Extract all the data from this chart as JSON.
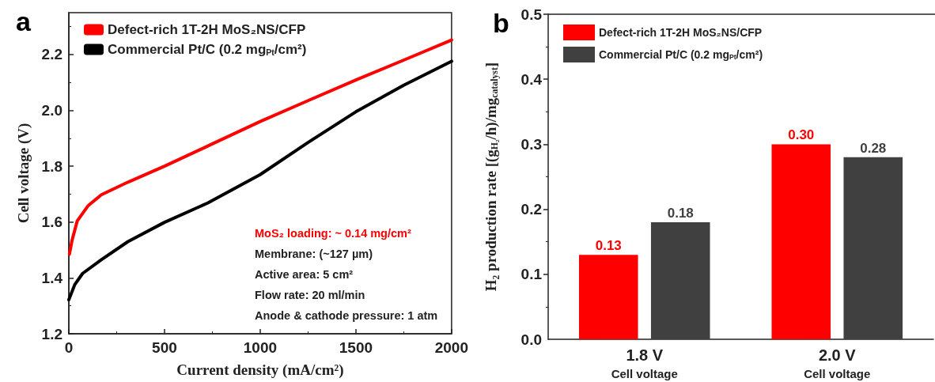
{
  "chart_data": [
    {
      "type": "line",
      "title": "a",
      "xlabel": "Current density (mA/cm²)",
      "ylabel": "Cell voltage (V)",
      "xlim": [
        0,
        2000
      ],
      "xticks": [
        0,
        500,
        1000,
        1500,
        2000
      ],
      "ylim": [
        1.2,
        2.35
      ],
      "yticks": [
        1.2,
        1.4,
        1.6,
        1.8,
        {
          "value": 2,
          "label": "2.0"
        },
        2.2
      ],
      "legend": "top left",
      "grid": false,
      "marker": "none",
      "line_style": "solid",
      "series": [
        {
          "name": "Defect-rich 1T-2H MoS₂NS/CFP",
          "color": "#ff0000",
          "x": [
            3,
            17,
            44,
            100,
            170,
            309,
            500,
            750,
            1000,
            1250,
            1500,
            1750,
            2000
          ],
          "values": [
            1.485,
            1.535,
            1.604,
            1.658,
            1.698,
            1.743,
            1.8,
            1.88,
            1.96,
            2.035,
            2.109,
            2.18,
            2.252
          ]
        },
        {
          "name": "Commercial Pt/C (0.2 mg$_{Pt}$/cm²)",
          "color": "#000000",
          "x": [
            0,
            31,
            72,
            170,
            309,
            500,
            725,
            1000,
            1250,
            1500,
            1750,
            2000
          ],
          "values": [
            1.322,
            1.376,
            1.416,
            1.465,
            1.53,
            1.599,
            1.668,
            1.77,
            1.885,
            1.995,
            2.09,
            2.176
          ]
        }
      ],
      "annotations": [
        "MoS₂ loading: ~ 0.14 mg/cm²",
        "Membrane: (~127 µm)",
        "Active area: 5 cm²",
        "Flow rate: 20 ml/min",
        "Anode & cathode pressure: 1 atm"
      ]
    },
    {
      "type": "bar",
      "title": "b",
      "ylabel": "H₂ production rate [(g$_{H₂}$/h)/mg$_{catalyst}$]",
      "categories": [
        "1.8 V\nCell voltage",
        "2.0 V\nCell voltage"
      ],
      "ylim": [
        0,
        0.5
      ],
      "yticks": [
        {
          "value": 0,
          "label": "0.0"
        },
        0.1,
        0.2,
        0.3,
        0.4,
        0.5
      ],
      "legend": "top left",
      "grid": false,
      "series": [
        {
          "name": "Defect-rich 1T-2H MoS₂NS/CFP",
          "color": "#ff0000",
          "values": [
            0.13,
            0.3
          ],
          "value_labels": [
            "0.13",
            "0.30"
          ]
        },
        {
          "name": "Commercial Pt/C (0.2 mg$_{Pt}$/cm²)",
          "color": "#404040",
          "values": [
            0.18,
            0.28
          ],
          "value_labels": [
            "0.18",
            "0.28"
          ]
        }
      ]
    }
  ]
}
